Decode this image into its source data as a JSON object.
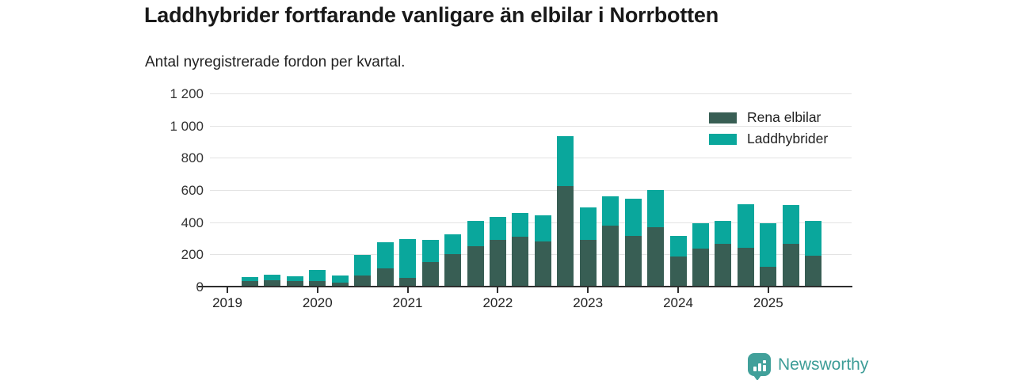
{
  "title": "Laddhybrider fortfarande vanligare än elbilar i Norrbotten",
  "subtitle": "Antal nyregistrerade fordon per kvartal.",
  "legend": {
    "items": [
      {
        "label": "Rena elbilar",
        "color": "#385e54"
      },
      {
        "label": "Laddhybrider",
        "color": "#0aa79c"
      }
    ]
  },
  "branding": {
    "name": "Newsworthy",
    "color": "#41a09a",
    "logo_icon": "bar-chart-pin-icon"
  },
  "colors": {
    "elbilar": "#385e54",
    "laddhybrider": "#0aa79c",
    "gridline": "#e3e3e3",
    "axis": "#2e2e2e",
    "text": "#222222"
  },
  "chart_data": {
    "type": "bar",
    "stacked": true,
    "title": "Laddhybrider fortfarande vanligare än elbilar i Norrbotten",
    "subtitle": "Antal nyregistrerade fordon per kvartal.",
    "xlabel": "",
    "ylabel": "",
    "ylim": [
      0,
      1200
    ],
    "grid": true,
    "legend_position": "top-right",
    "y_ticks": [
      0,
      200,
      400,
      600,
      800,
      1000,
      1200
    ],
    "y_tick_labels": [
      "0",
      "200",
      "400",
      "600",
      "800",
      "1 000",
      "1 200"
    ],
    "x_tick_labels": [
      "2019",
      "2020",
      "2021",
      "2022",
      "2023",
      "2024",
      "2025"
    ],
    "categories": [
      "Q1 2019",
      "Q2 2019",
      "Q3 2019",
      "Q4 2019",
      "Q1 2020",
      "Q2 2020",
      "Q3 2020",
      "Q4 2020",
      "Q1 2021",
      "Q2 2021",
      "Q3 2021",
      "Q4 2021",
      "Q1 2022",
      "Q2 2022",
      "Q3 2022",
      "Q4 2022",
      "Q1 2023",
      "Q2 2023",
      "Q3 2023",
      "Q4 2023",
      "Q1 2024",
      "Q2 2024",
      "Q3 2024",
      "Q4 2024",
      "Q1 2025",
      "Q2 2025"
    ],
    "series": [
      {
        "name": "Rena elbilar",
        "color": "#385e54",
        "values": [
          40,
          45,
          40,
          40,
          30,
          75,
          120,
          60,
          155,
          205,
          255,
          295,
          315,
          285,
          630,
          295,
          385,
          320,
          375,
          190,
          240,
          270,
          245,
          130,
          270,
          195
        ]
      },
      {
        "name": "Laddhybrider",
        "color": "#0aa79c",
        "values": [
          25,
          35,
          30,
          70,
          45,
          125,
          160,
          240,
          140,
          125,
          160,
          145,
          145,
          165,
          310,
          200,
          180,
          230,
          230,
          130,
          160,
          145,
          270,
          270,
          240,
          220
        ]
      }
    ],
    "totals": [
      65,
      80,
      70,
      110,
      75,
      200,
      280,
      300,
      295,
      330,
      415,
      440,
      460,
      450,
      940,
      495,
      565,
      550,
      605,
      320,
      400,
      415,
      515,
      400,
      510,
      415
    ]
  }
}
